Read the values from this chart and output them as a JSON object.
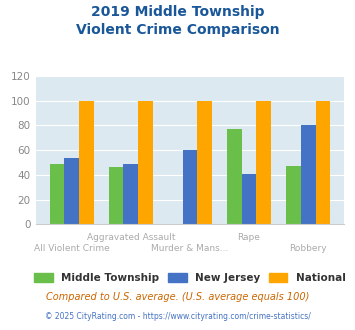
{
  "title_line1": "2019 Middle Township",
  "title_line2": "Violent Crime Comparison",
  "categories": [
    "All Violent Crime",
    "Aggravated Assault",
    "Murder & Mans...",
    "Rape",
    "Robbery"
  ],
  "middle_township": [
    49,
    46,
    0,
    77,
    47
  ],
  "new_jersey": [
    54,
    49,
    60,
    41,
    80
  ],
  "national": [
    100,
    100,
    100,
    100,
    100
  ],
  "color_mt": "#6abf4b",
  "color_nj": "#4472c4",
  "color_nat": "#ffa500",
  "ylim": [
    0,
    120
  ],
  "yticks": [
    0,
    20,
    40,
    60,
    80,
    100,
    120
  ],
  "footnote1": "Compared to U.S. average. (U.S. average equals 100)",
  "footnote2": "© 2025 CityRating.com - https://www.cityrating.com/crime-statistics/",
  "legend_labels": [
    "Middle Township",
    "New Jersey",
    "National"
  ],
  "bg_color": "#dce9f0",
  "title_color": "#1a5799",
  "label_color": "#aaaaaa"
}
